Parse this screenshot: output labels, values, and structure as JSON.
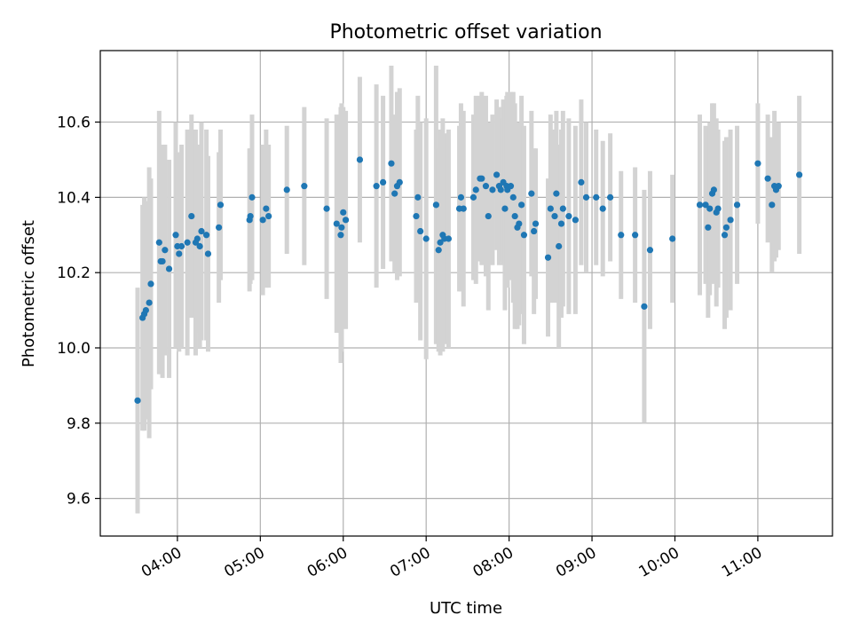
{
  "chart_data": {
    "type": "scatter",
    "title": "Photometric offset variation",
    "xlabel": "UTC time",
    "ylabel": "Photometric offset",
    "x_unit": "hours (UTC)",
    "xlim": [
      3.07,
      11.9
    ],
    "ylim": [
      9.5,
      10.79
    ],
    "grid": true,
    "x_ticks": [
      {
        "value": 4,
        "label": "04:00"
      },
      {
        "value": 5,
        "label": "05:00"
      },
      {
        "value": 6,
        "label": "06:00"
      },
      {
        "value": 7,
        "label": "07:00"
      },
      {
        "value": 8,
        "label": "08:00"
      },
      {
        "value": 9,
        "label": "09:00"
      },
      {
        "value": 10,
        "label": "10:00"
      },
      {
        "value": 11,
        "label": "11:00"
      }
    ],
    "y_ticks": [
      {
        "value": 9.6,
        "label": "9.6"
      },
      {
        "value": 9.8,
        "label": "9.8"
      },
      {
        "value": 10.0,
        "label": "10.0"
      },
      {
        "value": 10.2,
        "label": "10.2"
      },
      {
        "value": 10.4,
        "label": "10.4"
      },
      {
        "value": 10.6,
        "label": "10.6"
      }
    ],
    "colors": {
      "points": "#1f77b4",
      "error_bars": "#d3d3d3",
      "grid": "#b0b0b0"
    },
    "series": [
      {
        "x": [
          3.52,
          3.58,
          3.6,
          3.62,
          3.66,
          3.68,
          3.78,
          3.8,
          3.82,
          3.85,
          3.9,
          3.98,
          4.0,
          4.02,
          4.05,
          4.12,
          4.17,
          4.22,
          4.24,
          4.27,
          4.29,
          4.35,
          4.37,
          4.5,
          4.52,
          4.87,
          4.88,
          4.9,
          5.03,
          5.07,
          5.1,
          5.32,
          5.53,
          5.8,
          5.92,
          5.97,
          5.98,
          6.0,
          6.03,
          6.2,
          6.4,
          6.48,
          6.58,
          6.62,
          6.65,
          6.68,
          6.88,
          6.9,
          6.93,
          7.0,
          7.12,
          7.15,
          7.17,
          7.2,
          7.22,
          7.27,
          7.4,
          7.42,
          7.45,
          7.57,
          7.6,
          7.65,
          7.67,
          7.72,
          7.75,
          7.8,
          7.85,
          7.88,
          7.9,
          7.93,
          7.95,
          7.97,
          7.98,
          8.02,
          8.05,
          8.07,
          8.1,
          8.12,
          8.15,
          8.18,
          8.27,
          8.3,
          8.32,
          8.47,
          8.5,
          8.55,
          8.57,
          8.6,
          8.63,
          8.65,
          8.72,
          8.8,
          8.87,
          8.93,
          9.05,
          9.13,
          9.22,
          9.35,
          9.52,
          9.63,
          9.7,
          9.97,
          10.3,
          10.37,
          10.4,
          10.42,
          10.45,
          10.47,
          10.5,
          10.52,
          10.6,
          10.62,
          10.67,
          10.75,
          11.0,
          11.12,
          11.17,
          11.2,
          11.22,
          11.25,
          11.5
        ],
        "y": [
          9.86,
          10.08,
          10.09,
          10.1,
          10.12,
          10.17,
          10.28,
          10.23,
          10.23,
          10.26,
          10.21,
          10.3,
          10.27,
          10.25,
          10.27,
          10.28,
          10.35,
          10.28,
          10.29,
          10.27,
          10.31,
          10.3,
          10.25,
          10.32,
          10.38,
          10.34,
          10.35,
          10.4,
          10.34,
          10.37,
          10.35,
          10.42,
          10.43,
          10.37,
          10.33,
          10.3,
          10.32,
          10.36,
          10.34,
          10.5,
          10.43,
          10.44,
          10.49,
          10.41,
          10.43,
          10.44,
          10.35,
          10.4,
          10.31,
          10.29,
          10.38,
          10.26,
          10.28,
          10.3,
          10.29,
          10.29,
          10.37,
          10.4,
          10.37,
          10.4,
          10.42,
          10.45,
          10.45,
          10.43,
          10.35,
          10.42,
          10.46,
          10.43,
          10.42,
          10.44,
          10.37,
          10.43,
          10.42,
          10.43,
          10.4,
          10.35,
          10.32,
          10.33,
          10.38,
          10.3,
          10.41,
          10.31,
          10.33,
          10.24,
          10.37,
          10.35,
          10.41,
          10.27,
          10.33,
          10.37,
          10.35,
          10.34,
          10.44,
          10.4,
          10.4,
          10.37,
          10.4,
          10.3,
          10.3,
          10.11,
          10.26,
          10.29,
          10.38,
          10.38,
          10.32,
          10.37,
          10.41,
          10.42,
          10.36,
          10.37,
          10.3,
          10.32,
          10.34,
          10.38,
          10.49,
          10.45,
          10.38,
          10.43,
          10.42,
          10.43,
          10.46
        ],
        "yerr": [
          0.3,
          0.3,
          0.31,
          0.29,
          0.36,
          0.28,
          0.35,
          0.3,
          0.31,
          0.28,
          0.29,
          0.3,
          0.25,
          0.26,
          0.27,
          0.3,
          0.27,
          0.3,
          0.25,
          0.27,
          0.29,
          0.28,
          0.26,
          0.2,
          0.2,
          0.19,
          0.18,
          0.22,
          0.2,
          0.21,
          0.19,
          0.17,
          0.21,
          0.24,
          0.29,
          0.34,
          0.33,
          0.28,
          0.29,
          0.22,
          0.27,
          0.23,
          0.26,
          0.21,
          0.25,
          0.25,
          0.23,
          0.27,
          0.29,
          0.32,
          0.37,
          0.27,
          0.3,
          0.31,
          0.28,
          0.29,
          0.22,
          0.25,
          0.26,
          0.22,
          0.25,
          0.22,
          0.23,
          0.24,
          0.25,
          0.2,
          0.2,
          0.21,
          0.19,
          0.22,
          0.27,
          0.24,
          0.26,
          0.25,
          0.28,
          0.3,
          0.27,
          0.27,
          0.29,
          0.29,
          0.22,
          0.22,
          0.2,
          0.21,
          0.25,
          0.23,
          0.22,
          0.27,
          0.25,
          0.26,
          0.26,
          0.25,
          0.22,
          0.2,
          0.18,
          0.18,
          0.17,
          0.17,
          0.18,
          0.31,
          0.21,
          0.17,
          0.24,
          0.21,
          0.24,
          0.23,
          0.24,
          0.23,
          0.25,
          0.21,
          0.25,
          0.24,
          0.24,
          0.21,
          0.16,
          0.17,
          0.18,
          0.2,
          0.18,
          0.17,
          0.21
        ]
      }
    ]
  }
}
